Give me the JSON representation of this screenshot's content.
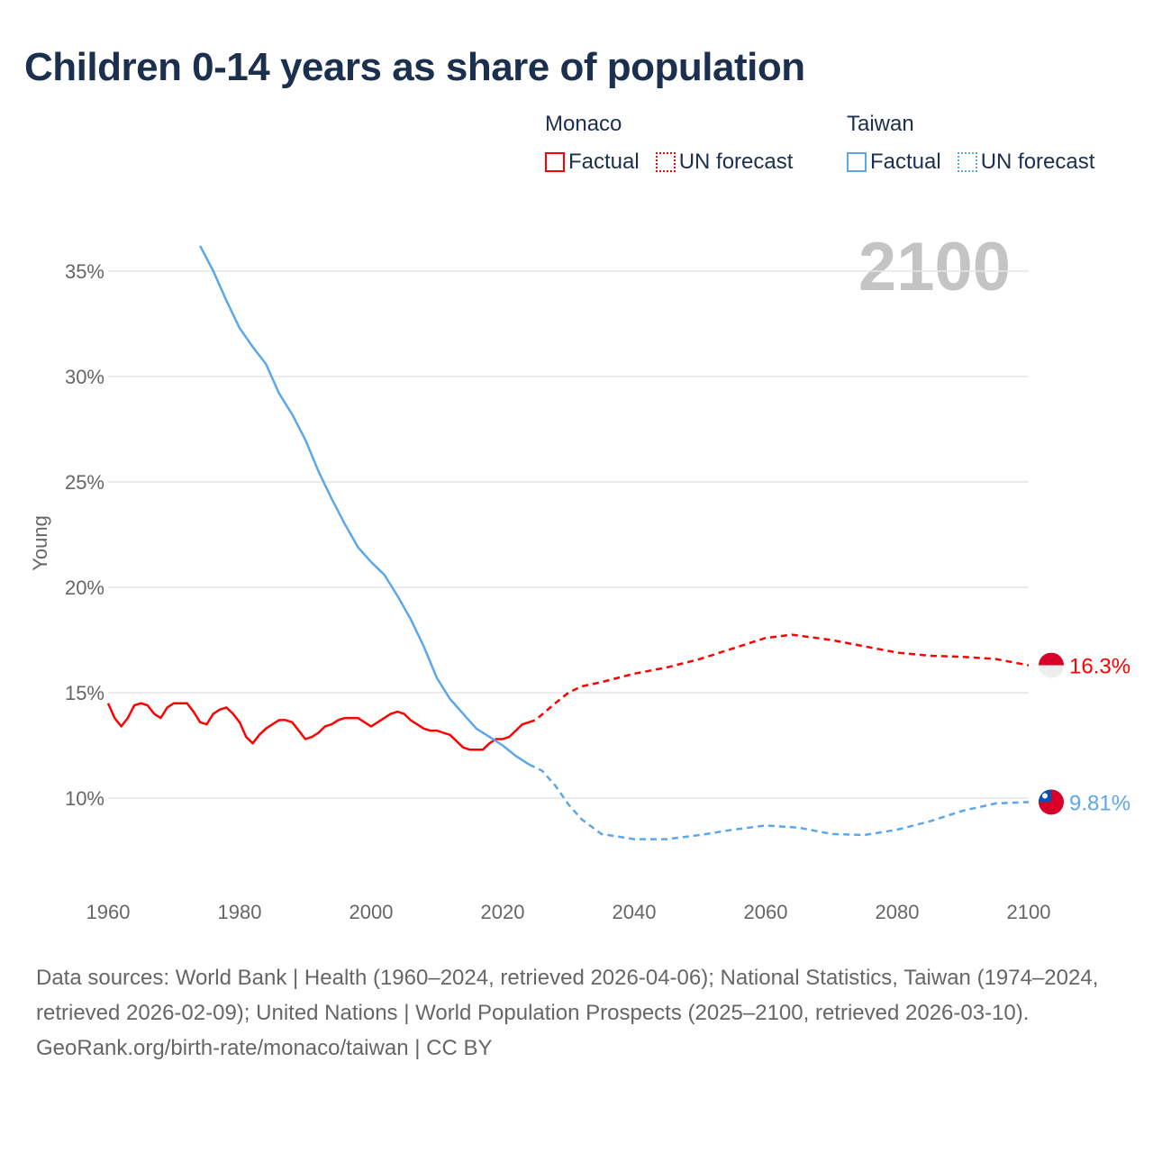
{
  "title": "Children 0-14 years as share of population",
  "legend": [
    {
      "group": "Monaco",
      "color": "#ff0000",
      "items": [
        {
          "label": "Factual",
          "style": "solid"
        },
        {
          "label": "UN forecast",
          "style": "dotted"
        }
      ]
    },
    {
      "group": "Taiwan",
      "color": "#5ba7ea",
      "items": [
        {
          "label": "Factual",
          "style": "solid"
        },
        {
          "label": "UN forecast",
          "style": "dotted"
        }
      ]
    }
  ],
  "year_label": "2100",
  "footer": {
    "sources": "Data sources: World Bank | Health (1960–2024, retrieved 2026-04-06); National Statistics, Taiwan (1974–2024, retrieved 2026-02-09); United Nations | World Population Prospects (2025–2100, retrieved 2026-03-10).",
    "credit": "GeoRank.org/birth-rate/monaco/taiwan | CC BY"
  },
  "chart_data": {
    "type": "line",
    "title": "Children 0-14 years as share of population",
    "ylabel": "Young",
    "xlabel": "",
    "xlim": [
      1960,
      2100
    ],
    "ylim": [
      6.5,
      36.5
    ],
    "x_ticks": [
      "1960",
      "1980",
      "2000",
      "2020",
      "2040",
      "2060",
      "2080",
      "2100"
    ],
    "y_ticks": [
      {
        "v": 10,
        "label": "10%"
      },
      {
        "v": 15,
        "label": "15%"
      },
      {
        "v": 20,
        "label": "20%"
      },
      {
        "v": 25,
        "label": "25%"
      },
      {
        "v": 30,
        "label": "30%"
      },
      {
        "v": 35,
        "label": "35%"
      }
    ],
    "grid": true,
    "series": [
      {
        "name": "Monaco",
        "color": "#ff0000",
        "end_label": "16.3%",
        "factual": [
          [
            1960,
            14.5
          ],
          [
            1961,
            13.8
          ],
          [
            1962,
            13.4
          ],
          [
            1963,
            13.8
          ],
          [
            1964,
            14.4
          ],
          [
            1965,
            14.5
          ],
          [
            1966,
            14.4
          ],
          [
            1967,
            14.0
          ],
          [
            1968,
            13.8
          ],
          [
            1969,
            14.3
          ],
          [
            1970,
            14.5
          ],
          [
            1971,
            14.5
          ],
          [
            1972,
            14.5
          ],
          [
            1973,
            14.1
          ],
          [
            1974,
            13.6
          ],
          [
            1975,
            13.5
          ],
          [
            1976,
            14.0
          ],
          [
            1977,
            14.2
          ],
          [
            1978,
            14.3
          ],
          [
            1979,
            14.0
          ],
          [
            1980,
            13.6
          ],
          [
            1981,
            12.9
          ],
          [
            1982,
            12.6
          ],
          [
            1983,
            13.0
          ],
          [
            1984,
            13.3
          ],
          [
            1985,
            13.5
          ],
          [
            1986,
            13.7
          ],
          [
            1987,
            13.7
          ],
          [
            1988,
            13.6
          ],
          [
            1989,
            13.2
          ],
          [
            1990,
            12.8
          ],
          [
            1991,
            12.9
          ],
          [
            1992,
            13.1
          ],
          [
            1993,
            13.4
          ],
          [
            1994,
            13.5
          ],
          [
            1995,
            13.7
          ],
          [
            1996,
            13.8
          ],
          [
            1997,
            13.8
          ],
          [
            1998,
            13.8
          ],
          [
            1999,
            13.6
          ],
          [
            2000,
            13.4
          ],
          [
            2001,
            13.6
          ],
          [
            2002,
            13.8
          ],
          [
            2003,
            14.0
          ],
          [
            2004,
            14.1
          ],
          [
            2005,
            14.0
          ],
          [
            2006,
            13.7
          ],
          [
            2007,
            13.5
          ],
          [
            2008,
            13.3
          ],
          [
            2009,
            13.2
          ],
          [
            2010,
            13.2
          ],
          [
            2011,
            13.1
          ],
          [
            2012,
            13.0
          ],
          [
            2013,
            12.7
          ],
          [
            2014,
            12.4
          ],
          [
            2015,
            12.3
          ],
          [
            2016,
            12.3
          ],
          [
            2017,
            12.3
          ],
          [
            2018,
            12.6
          ],
          [
            2019,
            12.8
          ],
          [
            2020,
            12.8
          ],
          [
            2021,
            12.9
          ],
          [
            2022,
            13.2
          ],
          [
            2023,
            13.5
          ],
          [
            2024,
            13.6
          ]
        ],
        "forecast": [
          [
            2024,
            13.6
          ],
          [
            2025,
            13.7
          ],
          [
            2028,
            14.5
          ],
          [
            2030,
            15.0
          ],
          [
            2032,
            15.3
          ],
          [
            2035,
            15.5
          ],
          [
            2040,
            15.9
          ],
          [
            2045,
            16.2
          ],
          [
            2050,
            16.6
          ],
          [
            2055,
            17.1
          ],
          [
            2060,
            17.6
          ],
          [
            2064,
            17.75
          ],
          [
            2070,
            17.5
          ],
          [
            2075,
            17.2
          ],
          [
            2080,
            16.9
          ],
          [
            2085,
            16.75
          ],
          [
            2090,
            16.7
          ],
          [
            2095,
            16.6
          ],
          [
            2100,
            16.3
          ]
        ]
      },
      {
        "name": "Taiwan",
        "color": "#5ba7ea",
        "end_label": "9.81%",
        "factual": [
          [
            1974,
            36.2
          ],
          [
            1976,
            35.0
          ],
          [
            1978,
            33.6
          ],
          [
            1980,
            32.3
          ],
          [
            1982,
            31.4
          ],
          [
            1984,
            30.6
          ],
          [
            1986,
            29.2
          ],
          [
            1988,
            28.2
          ],
          [
            1990,
            27.0
          ],
          [
            1992,
            25.5
          ],
          [
            1994,
            24.2
          ],
          [
            1996,
            23.0
          ],
          [
            1998,
            21.9
          ],
          [
            2000,
            21.2
          ],
          [
            2002,
            20.6
          ],
          [
            2004,
            19.6
          ],
          [
            2006,
            18.5
          ],
          [
            2008,
            17.2
          ],
          [
            2010,
            15.7
          ],
          [
            2012,
            14.7
          ],
          [
            2014,
            14.0
          ],
          [
            2016,
            13.3
          ],
          [
            2018,
            12.9
          ],
          [
            2020,
            12.5
          ],
          [
            2022,
            12.0
          ],
          [
            2024,
            11.6
          ]
        ],
        "forecast": [
          [
            2024,
            11.6
          ],
          [
            2026,
            11.3
          ],
          [
            2028,
            10.6
          ],
          [
            2030,
            9.7
          ],
          [
            2032,
            9.0
          ],
          [
            2035,
            8.3
          ],
          [
            2040,
            8.05
          ],
          [
            2045,
            8.05
          ],
          [
            2050,
            8.25
          ],
          [
            2055,
            8.5
          ],
          [
            2060,
            8.7
          ],
          [
            2065,
            8.6
          ],
          [
            2070,
            8.3
          ],
          [
            2075,
            8.25
          ],
          [
            2080,
            8.5
          ],
          [
            2085,
            8.9
          ],
          [
            2090,
            9.4
          ],
          [
            2095,
            9.75
          ],
          [
            2100,
            9.81
          ]
        ]
      }
    ]
  }
}
